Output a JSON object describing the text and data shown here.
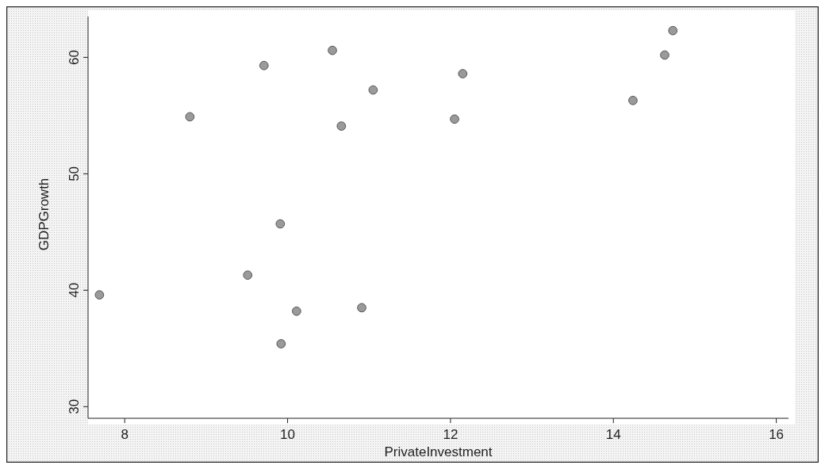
{
  "chart_data": {
    "type": "scatter",
    "xlabel": "PrivateInvestment",
    "ylabel": "GDPGrowth",
    "marker": "circle",
    "grid": false,
    "xlim": [
      7.55,
      16.15
    ],
    "xticks": [
      8,
      10,
      12,
      14,
      16
    ],
    "ylim": [
      29,
      63.5
    ],
    "yticks": [
      30,
      40,
      50,
      60
    ],
    "series": [
      {
        "color": "#9a9a9a",
        "x": [
          7.69,
          8.8,
          9.71,
          9.91,
          9.51,
          10.11,
          9.92,
          10.55,
          11.05,
          10.66,
          12.15,
          12.05,
          14.24,
          14.63,
          14.73,
          10.91
        ],
        "values": [
          39.6,
          54.9,
          59.3,
          45.7,
          41.3,
          38.2,
          35.4,
          60.6,
          57.2,
          54.1,
          58.6,
          54.7,
          56.3,
          60.2,
          62.3,
          38.5
        ]
      }
    ]
  }
}
